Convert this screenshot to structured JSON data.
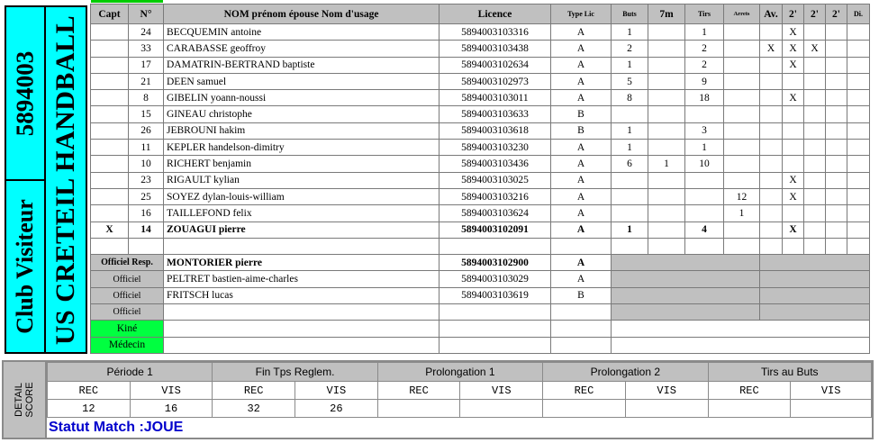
{
  "club": {
    "number": "5894003",
    "label": "Club Visiteur",
    "name": "US CRETEIL HANDBALL"
  },
  "headers": [
    "Capt",
    "N°",
    "NOM prénom épouse Nom d'usage",
    "Licence",
    "Type Lic",
    "Buts",
    "7m",
    "Tirs",
    "Arrets",
    "Av.",
    "2'",
    "2'",
    "2'",
    "Di."
  ],
  "players": [
    {
      "capt": "",
      "num": "24",
      "name": "BECQUEMIN antoine",
      "licence": "5894003103316",
      "type": "A",
      "buts": "1",
      "m7": "",
      "tirs": "1",
      "arrets": "",
      "av": "",
      "s1": "X",
      "s2": "",
      "s3": "",
      "di": "",
      "bold": false
    },
    {
      "capt": "",
      "num": "33",
      "name": "CARABASSE geoffroy",
      "licence": "5894003103438",
      "type": "A",
      "buts": "2",
      "m7": "",
      "tirs": "2",
      "arrets": "",
      "av": "X",
      "s1": "X",
      "s2": "X",
      "s3": "",
      "di": "",
      "bold": false
    },
    {
      "capt": "",
      "num": "17",
      "name": "DAMATRIN-BERTRAND baptiste",
      "licence": "5894003102634",
      "type": "A",
      "buts": "1",
      "m7": "",
      "tirs": "2",
      "arrets": "",
      "av": "",
      "s1": "X",
      "s2": "",
      "s3": "",
      "di": "",
      "bold": false
    },
    {
      "capt": "",
      "num": "21",
      "name": "DEEN samuel",
      "licence": "5894003102973",
      "type": "A",
      "buts": "5",
      "m7": "",
      "tirs": "9",
      "arrets": "",
      "av": "",
      "s1": "",
      "s2": "",
      "s3": "",
      "di": "",
      "bold": false
    },
    {
      "capt": "",
      "num": "8",
      "name": "GIBELIN yoann-noussi",
      "licence": "5894003103011",
      "type": "A",
      "buts": "8",
      "m7": "",
      "tirs": "18",
      "arrets": "",
      "av": "",
      "s1": "X",
      "s2": "",
      "s3": "",
      "di": "",
      "bold": false
    },
    {
      "capt": "",
      "num": "15",
      "name": "GINEAU christophe",
      "licence": "5894003103633",
      "type": "B",
      "buts": "",
      "m7": "",
      "tirs": "",
      "arrets": "",
      "av": "",
      "s1": "",
      "s2": "",
      "s3": "",
      "di": "",
      "bold": false
    },
    {
      "capt": "",
      "num": "26",
      "name": "JEBROUNI hakim",
      "licence": "5894003103618",
      "type": "B",
      "buts": "1",
      "m7": "",
      "tirs": "3",
      "arrets": "",
      "av": "",
      "s1": "",
      "s2": "",
      "s3": "",
      "di": "",
      "bold": false
    },
    {
      "capt": "",
      "num": "11",
      "name": "KEPLER handelson-dimitry",
      "licence": "5894003103230",
      "type": "A",
      "buts": "1",
      "m7": "",
      "tirs": "1",
      "arrets": "",
      "av": "",
      "s1": "",
      "s2": "",
      "s3": "",
      "di": "",
      "bold": false
    },
    {
      "capt": "",
      "num": "10",
      "name": "RICHERT benjamin",
      "licence": "5894003103436",
      "type": "A",
      "buts": "6",
      "m7": "1",
      "tirs": "10",
      "arrets": "",
      "av": "",
      "s1": "",
      "s2": "",
      "s3": "",
      "di": "",
      "bold": false
    },
    {
      "capt": "",
      "num": "23",
      "name": "RIGAULT kylian",
      "licence": "5894003103025",
      "type": "A",
      "buts": "",
      "m7": "",
      "tirs": "",
      "arrets": "",
      "av": "",
      "s1": "X",
      "s2": "",
      "s3": "",
      "di": "",
      "bold": false
    },
    {
      "capt": "",
      "num": "25",
      "name": "SOYEZ dylan-louis-william",
      "licence": "5894003103216",
      "type": "A",
      "buts": "",
      "m7": "",
      "tirs": "",
      "arrets": "12",
      "av": "",
      "s1": "X",
      "s2": "",
      "s3": "",
      "di": "",
      "bold": false
    },
    {
      "capt": "",
      "num": "16",
      "name": "TAILLEFOND felix",
      "licence": "5894003103624",
      "type": "A",
      "buts": "",
      "m7": "",
      "tirs": "",
      "arrets": "1",
      "av": "",
      "s1": "",
      "s2": "",
      "s3": "",
      "di": "",
      "bold": false
    },
    {
      "capt": "X",
      "num": "14",
      "name": "ZOUAGUI pierre",
      "licence": "5894003102091",
      "type": "A",
      "buts": "1",
      "m7": "",
      "tirs": "4",
      "arrets": "",
      "av": "",
      "s1": "X",
      "s2": "",
      "s3": "",
      "di": "",
      "bold": true
    }
  ],
  "officials": [
    {
      "role": "Officiel Resp.",
      "name": "MONTORIER pierre",
      "licence": "5894003102900",
      "type": "A",
      "bold": true
    },
    {
      "role": "Officiel",
      "name": "PELTRET bastien-aime-charles",
      "licence": "5894003103029",
      "type": "A",
      "bold": false
    },
    {
      "role": "Officiel",
      "name": "FRITSCH lucas",
      "licence": "5894003103619",
      "type": "B",
      "bold": false
    },
    {
      "role": "Officiel",
      "name": "",
      "licence": "",
      "type": "",
      "bold": false
    }
  ],
  "staff": [
    {
      "role": "Kiné"
    },
    {
      "role": "Médecin"
    }
  ],
  "score": {
    "side_label_1": "DETAIL",
    "side_label_2": "SCORE",
    "periods": [
      "Période 1",
      "Fin Tps Reglem.",
      "Prolongation 1",
      "Prolongation 2",
      "Tirs au Buts"
    ],
    "rec_label": "REC",
    "vis_label": "VIS",
    "values": [
      {
        "rec": "12",
        "vis": "16"
      },
      {
        "rec": "32",
        "vis": "26"
      },
      {
        "rec": "",
        "vis": ""
      },
      {
        "rec": "",
        "vis": ""
      },
      {
        "rec": "",
        "vis": ""
      }
    ]
  },
  "status": "Statut Match :JOUE",
  "colors": {
    "cyan": "#00ffff",
    "gray": "#c0c0c0",
    "green": "#00ff40",
    "status_blue": "#0000cc"
  }
}
